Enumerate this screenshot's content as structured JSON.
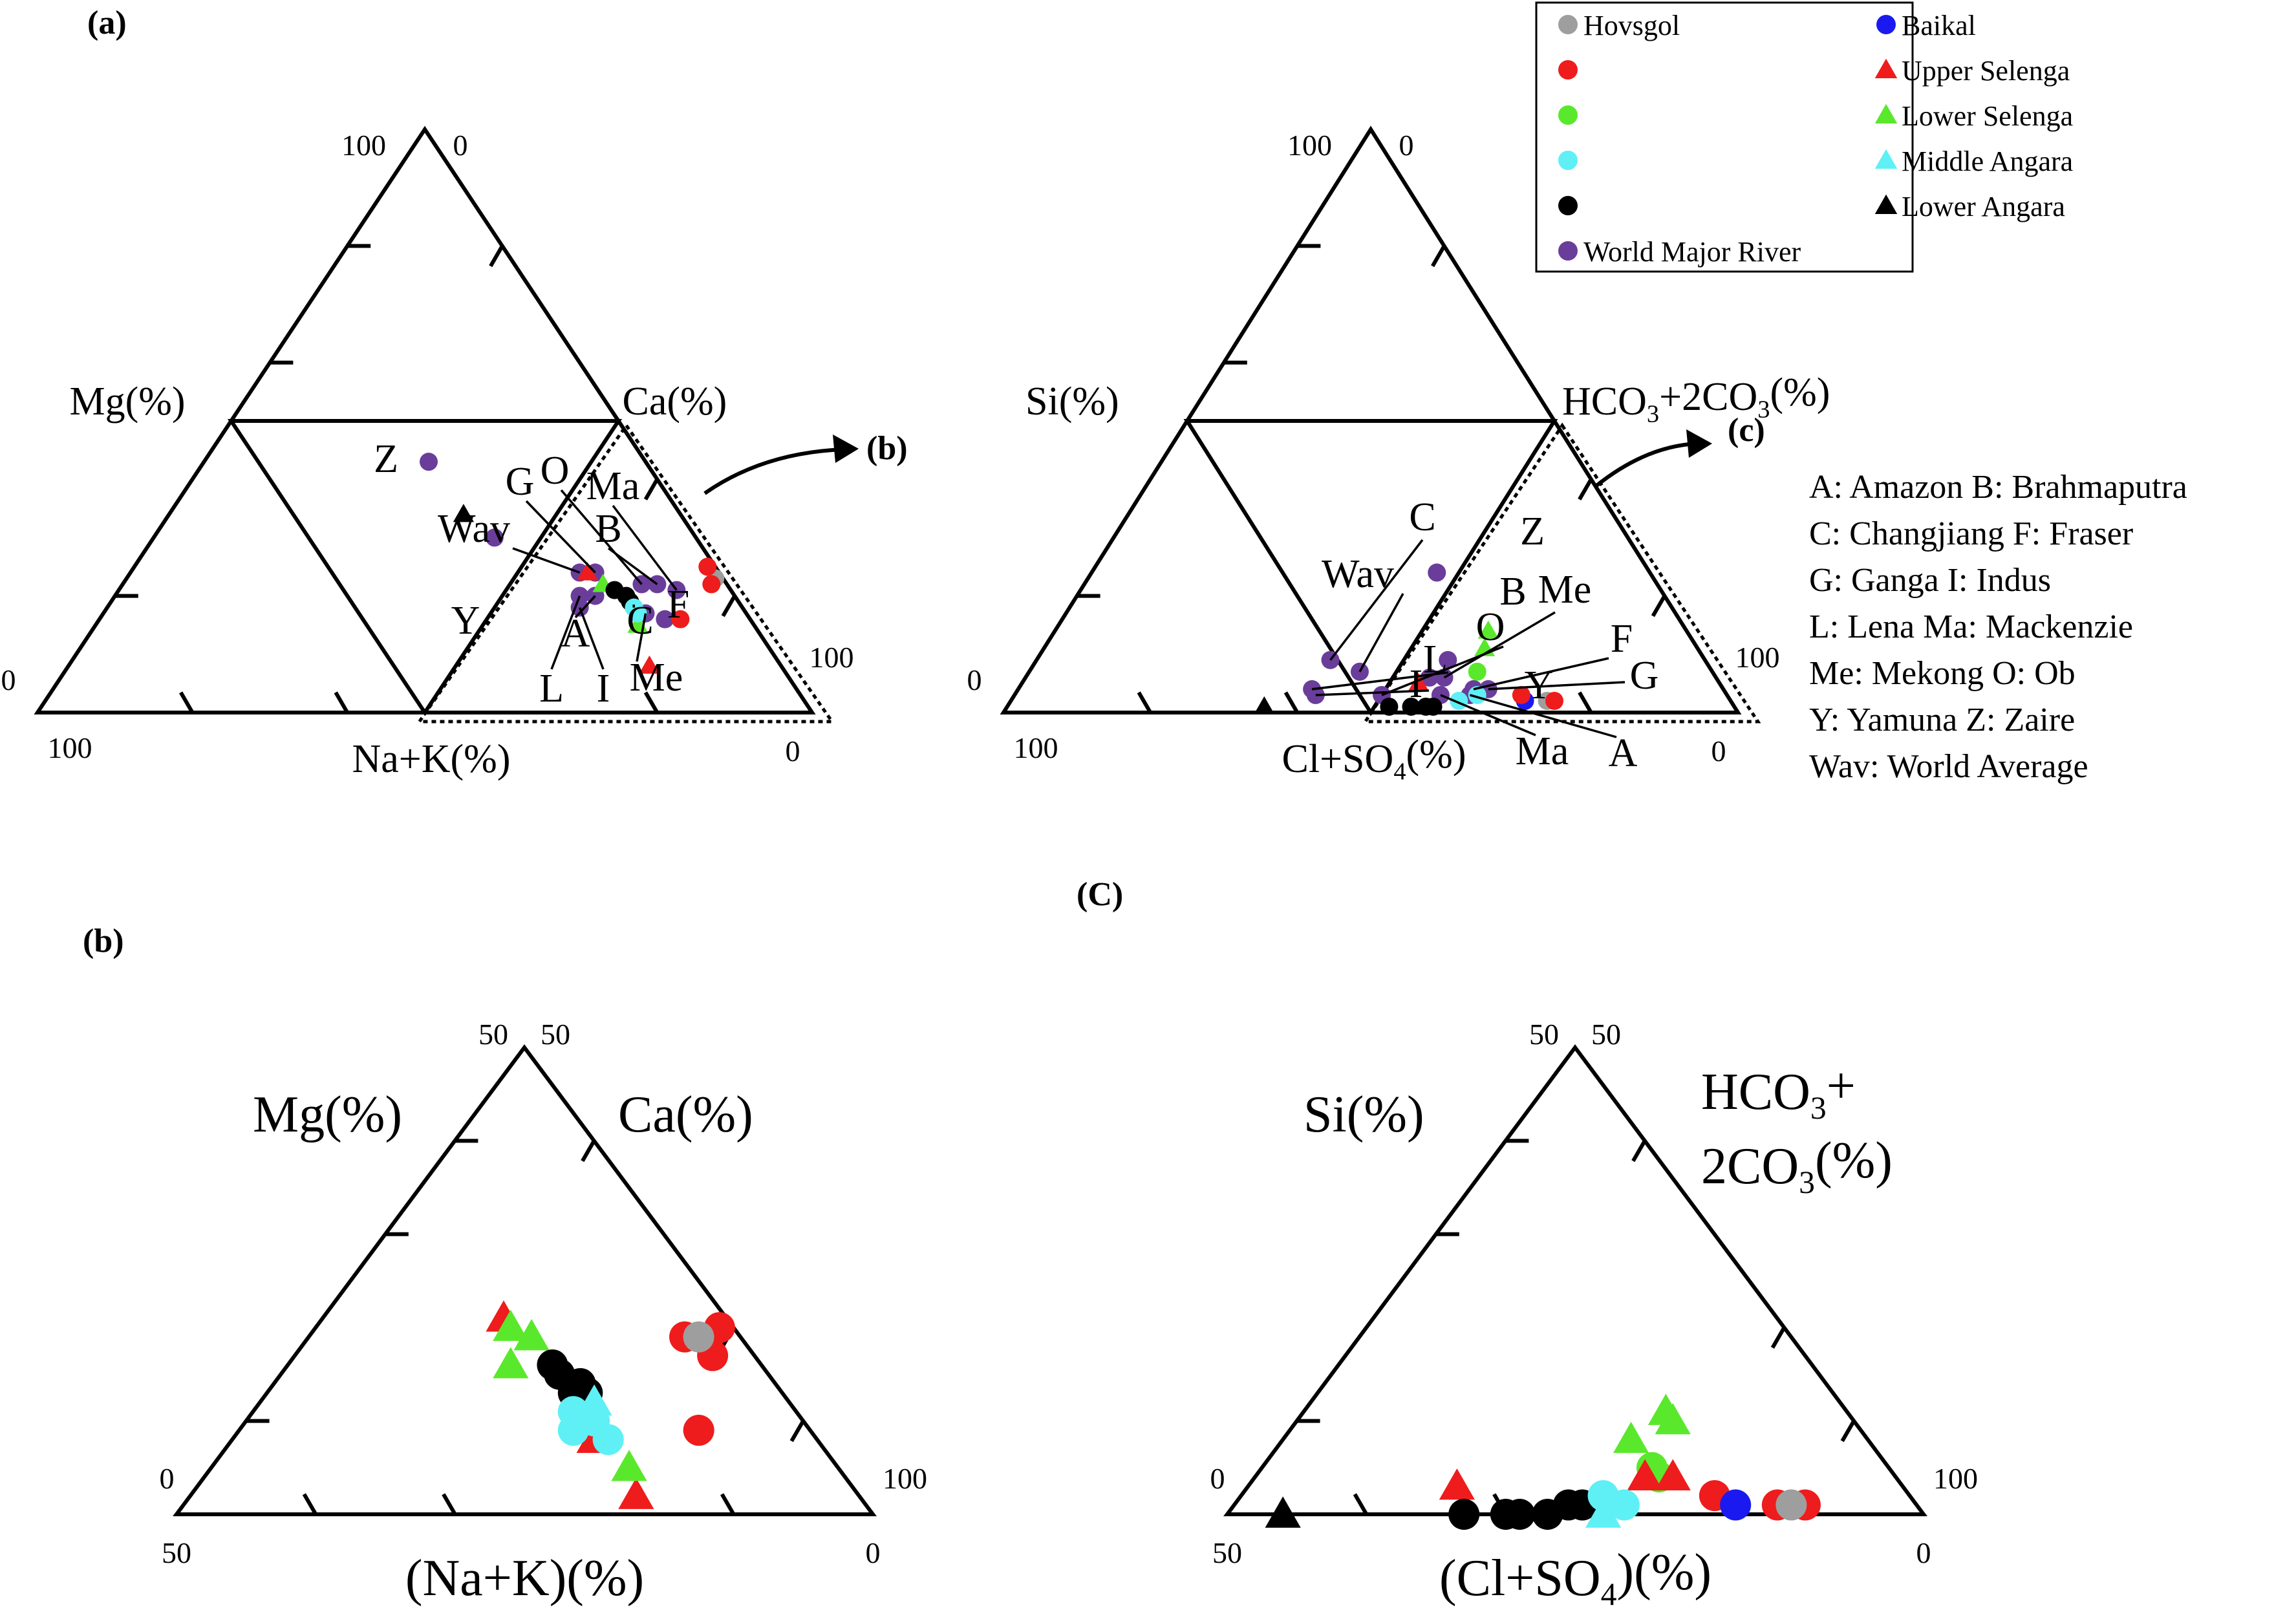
{
  "panel_labels": {
    "a": "(a)",
    "b": "(b)",
    "c": "(C)",
    "arrow_b": "(b)",
    "arrow_c": "(c)"
  },
  "legend": {
    "entries": [
      {
        "label": "Hovsgol",
        "marker": "circle",
        "color": "#9e9e9e"
      },
      {
        "label": "Baikal",
        "marker": "circle",
        "color": "#1a1af0"
      },
      {
        "label": "",
        "marker": "circle",
        "color": "#ee1c1c"
      },
      {
        "label": "Upper Selenga",
        "marker": "triangle",
        "color": "#ee1c1c"
      },
      {
        "label": "",
        "marker": "circle",
        "color": "#5ae82c"
      },
      {
        "label": "Lower Selenga",
        "marker": "triangle",
        "color": "#5ae82c"
      },
      {
        "label": "",
        "marker": "circle",
        "color": "#5ef0f5"
      },
      {
        "label": "Middle Angara",
        "marker": "triangle",
        "color": "#5ef0f5"
      },
      {
        "label": "",
        "marker": "circle",
        "color": "#000000"
      },
      {
        "label": "Lower Angara",
        "marker": "triangle",
        "color": "#000000"
      },
      {
        "label": "World Major River",
        "marker": "circle",
        "color": "#6a3d9a"
      }
    ]
  },
  "abbreviations": [
    "A: Amazon  B: Brahmaputra",
    "C: Changjiang  F: Fraser",
    "G: Ganga  I: Indus",
    "L: Lena  Ma: Mackenzie",
    "Me: Mekong  O: Ob",
    "Y: Yamuna  Z: Zaire",
    "Wav:  World Average"
  ],
  "colors": {
    "Hovsgol": "#9e9e9e",
    "Baikal": "#1a1af0",
    "Red": "#ee1c1c",
    "Green": "#5ae82c",
    "Cyan": "#5ef0f5",
    "Black": "#000000",
    "World Major River": "#6a3d9a"
  },
  "chart_data": [
    {
      "type": "ternary",
      "id": "cation-full",
      "axes": {
        "left": "Mg(%)",
        "right": "Ca(%)",
        "bottom": "Na+K(%)"
      },
      "corner_ticks": {
        "top_left": "100",
        "top_right": "0",
        "left": "0",
        "right": "100",
        "bottom_left": "100",
        "bottom_right": "0"
      },
      "points": [
        {
          "series": "World Major River",
          "marker": "circle",
          "label": "Z",
          "ca": 29,
          "mg": 43
        },
        {
          "series": "World Major River",
          "marker": "circle",
          "label": "Y",
          "ca": 44,
          "mg": 30
        },
        {
          "series": "World Major River",
          "marker": "circle",
          "label": "Wav",
          "ca": 58,
          "mg": 24
        },
        {
          "series": "World Major River",
          "marker": "circle",
          "label": "G",
          "ca": 60,
          "mg": 24
        },
        {
          "series": "World Major River",
          "marker": "circle",
          "label": "L",
          "ca": 60,
          "mg": 20
        },
        {
          "series": "World Major River",
          "marker": "circle",
          "label": "A",
          "ca": 62,
          "mg": 20
        },
        {
          "series": "World Major River",
          "marker": "circle",
          "label": "I",
          "ca": 61,
          "mg": 18
        },
        {
          "series": "World Major River",
          "marker": "circle",
          "label": "O",
          "ca": 67,
          "mg": 22
        },
        {
          "series": "World Major River",
          "marker": "circle",
          "label": "B",
          "ca": 69,
          "mg": 22
        },
        {
          "series": "World Major River",
          "marker": "circle",
          "label": "C",
          "ca": 68,
          "mg": 18
        },
        {
          "series": "World Major River",
          "marker": "circle",
          "label": "Me",
          "ca": 70,
          "mg": 17
        },
        {
          "series": "World Major River",
          "marker": "circle",
          "label": "Ma",
          "ca": 72,
          "mg": 21
        },
        {
          "series": "World Major River",
          "marker": "circle",
          "label": "F",
          "ca": 73,
          "mg": 16
        },
        {
          "series": "Hovsgol",
          "marker": "circle",
          "ca": 76,
          "mg": 23
        },
        {
          "series": "Red",
          "marker": "circle",
          "ca": 74,
          "mg": 25
        },
        {
          "series": "Red",
          "marker": "circle",
          "ca": 76,
          "mg": 22
        },
        {
          "series": "Red",
          "marker": "circle",
          "ca": 75,
          "mg": 16
        },
        {
          "series": "Upper Selenga",
          "marker": "triangle",
          "ca": 75,
          "mg": 8
        },
        {
          "series": "Upper Selenga",
          "marker": "triangle",
          "ca": 59,
          "mg": 24
        },
        {
          "series": "Lower Selenga",
          "marker": "triangle",
          "ca": 62,
          "mg": 22
        },
        {
          "series": "Lower Selenga",
          "marker": "triangle",
          "ca": 70,
          "mg": 15
        },
        {
          "series": "Black",
          "marker": "circle",
          "ca": 64,
          "mg": 21
        },
        {
          "series": "Black",
          "marker": "circle",
          "ca": 66,
          "mg": 20
        },
        {
          "series": "Black",
          "marker": "circle",
          "ca": 67,
          "mg": 19
        },
        {
          "series": "Cyan",
          "marker": "circle",
          "ca": 68,
          "mg": 18
        },
        {
          "series": "Cyan",
          "marker": "circle",
          "ca": 69,
          "mg": 17
        },
        {
          "series": "Lower Angara",
          "marker": "triangle",
          "ca": 38,
          "mg": 34
        }
      ]
    },
    {
      "type": "ternary",
      "id": "anion-full",
      "axes": {
        "left": "Si(%)",
        "right": "HCO3+2CO3(%)",
        "right_parts": [
          "HCO",
          "3",
          "+2CO",
          "3",
          "(%)"
        ],
        "bottom": "Cl+SO4(%)",
        "bottom_parts": [
          "Cl+SO",
          "4",
          "(%)"
        ]
      },
      "corner_ticks": {
        "top_left": "100",
        "top_right": "0",
        "left": "0",
        "right": "100",
        "bottom_left": "100",
        "bottom_right": "0"
      },
      "points": [
        {
          "series": "World Major River",
          "marker": "circle",
          "label": "Z",
          "hco3": 47,
          "si": 24
        },
        {
          "series": "World Major River",
          "marker": "circle",
          "label": "C",
          "hco3": 40,
          "si": 9
        },
        {
          "series": "World Major River",
          "marker": "circle",
          "label": "Wav",
          "hco3": 45,
          "si": 7
        },
        {
          "series": "World Major River",
          "marker": "circle",
          "label": "L",
          "hco3": 40,
          "si": 4
        },
        {
          "series": "World Major River",
          "marker": "circle",
          "label": "I",
          "hco3": 41,
          "si": 3
        },
        {
          "series": "World Major River",
          "marker": "circle",
          "label": "O",
          "hco3": 50,
          "si": 3
        },
        {
          "series": "World Major River",
          "marker": "circle",
          "label": "Y",
          "hco3": 55,
          "si": 6
        },
        {
          "series": "World Major River",
          "marker": "circle",
          "label": "B",
          "hco3": 56,
          "si": 9
        },
        {
          "series": "World Major River",
          "marker": "circle",
          "label": "Me",
          "hco3": 57,
          "si": 6
        },
        {
          "series": "World Major River",
          "marker": "circle",
          "label": "Ma",
          "hco3": 58,
          "si": 3
        },
        {
          "series": "World Major River",
          "marker": "circle",
          "label": "F",
          "hco3": 62,
          "si": 4
        },
        {
          "series": "World Major River",
          "marker": "circle",
          "label": "A",
          "hco3": 62,
          "si": 3
        },
        {
          "series": "World Major River",
          "marker": "circle",
          "label": "G",
          "hco3": 64,
          "si": 4
        },
        {
          "series": "Upper Selenga",
          "marker": "triangle",
          "hco3": 54,
          "si": 5
        },
        {
          "series": "Lower Selenga",
          "marker": "triangle",
          "hco3": 59,
          "si": 14
        },
        {
          "series": "Lower Selenga",
          "marker": "triangle",
          "hco3": 60,
          "si": 11
        },
        {
          "series": "Green",
          "marker": "circle",
          "hco3": 61,
          "si": 7
        },
        {
          "series": "Black",
          "marker": "circle",
          "hco3": 52,
          "si": 1
        },
        {
          "series": "Black",
          "marker": "circle",
          "hco3": 55,
          "si": 1
        },
        {
          "series": "Black",
          "marker": "circle",
          "hco3": 57,
          "si": 1
        },
        {
          "series": "Black",
          "marker": "circle",
          "hco3": 58,
          "si": 1
        },
        {
          "series": "Cyan",
          "marker": "circle",
          "hco3": 61,
          "si": 2
        },
        {
          "series": "Cyan",
          "marker": "circle",
          "hco3": 63,
          "si": 3
        },
        {
          "series": "Baikal",
          "marker": "circle",
          "hco3": 70,
          "si": 2
        },
        {
          "series": "Hovsgol",
          "marker": "circle",
          "hco3": 73,
          "si": 2
        },
        {
          "series": "Red",
          "marker": "circle",
          "hco3": 69,
          "si": 3
        },
        {
          "series": "Red",
          "marker": "circle",
          "hco3": 74,
          "si": 2
        },
        {
          "series": "Lower Angara",
          "marker": "triangle",
          "hco3": 35,
          "si": 1
        }
      ]
    },
    {
      "type": "ternary",
      "id": "cation-zoom",
      "axes": {
        "left": "Mg(%)",
        "right": "Ca(%)",
        "bottom": "(Na+K)(%)"
      },
      "corner_ticks": {
        "top_left": "50",
        "top_right": "50",
        "left": "0",
        "right": "100",
        "bottom_left": "50",
        "bottom_right": "0"
      },
      "points": [
        {
          "series": "Red",
          "marker": "circle",
          "ca": 77,
          "mg": 19
        },
        {
          "series": "Red",
          "marker": "circle",
          "ca": 79,
          "mg": 20
        },
        {
          "series": "Red",
          "marker": "circle",
          "ca": 80,
          "mg": 17
        },
        {
          "series": "Red",
          "marker": "circle",
          "ca": 83,
          "mg": 9
        },
        {
          "series": "Hovsgol",
          "marker": "circle",
          "ca": 78,
          "mg": 19
        },
        {
          "series": "Upper Selenga",
          "marker": "triangle",
          "ca": 63,
          "mg": 21
        },
        {
          "series": "Upper Selenga",
          "marker": "triangle",
          "ca": 82,
          "mg": 2
        },
        {
          "series": "Upper Selenga",
          "marker": "triangle",
          "ca": 76,
          "mg": 8
        },
        {
          "series": "Lower Selenga",
          "marker": "triangle",
          "ca": 64,
          "mg": 20
        },
        {
          "series": "Lower Selenga",
          "marker": "triangle",
          "ca": 66,
          "mg": 19
        },
        {
          "series": "Lower Selenga",
          "marker": "triangle",
          "ca": 66,
          "mg": 16
        },
        {
          "series": "Lower Selenga",
          "marker": "triangle",
          "ca": 80,
          "mg": 5
        },
        {
          "series": "Black",
          "marker": "circle",
          "ca": 69,
          "mg": 16
        },
        {
          "series": "Black",
          "marker": "circle",
          "ca": 70,
          "mg": 15
        },
        {
          "series": "Black",
          "marker": "circle",
          "ca": 72,
          "mg": 14
        },
        {
          "series": "Black",
          "marker": "circle",
          "ca": 73,
          "mg": 13
        },
        {
          "series": "Black",
          "marker": "circle",
          "ca": 72,
          "mg": 13
        },
        {
          "series": "Cyan",
          "marker": "circle",
          "ca": 73,
          "mg": 11
        },
        {
          "series": "Cyan",
          "marker": "circle",
          "ca": 75,
          "mg": 10
        },
        {
          "series": "Cyan",
          "marker": "circle",
          "ca": 77,
          "mg": 8
        },
        {
          "series": "Cyan",
          "marker": "circle",
          "ca": 74,
          "mg": 9
        },
        {
          "series": "Middle Angara",
          "marker": "triangle",
          "ca": 74,
          "mg": 12
        }
      ]
    },
    {
      "type": "ternary",
      "id": "anion-zoom",
      "axes": {
        "left": "Si(%)",
        "right_line1": "HCO3+",
        "right_line1_parts": [
          "HCO",
          "3",
          "+"
        ],
        "right_line2": "2CO3(%)",
        "right_line2_parts": [
          "2CO",
          "3",
          "(%)"
        ],
        "bottom": "(Cl+SO4)(%)",
        "bottom_parts": [
          "(Cl+SO",
          "4",
          ")(%)"
        ]
      },
      "corner_ticks": {
        "top_left": "50",
        "top_right": "50",
        "left": "0",
        "right": "100",
        "bottom_left": "50",
        "bottom_right": "0"
      },
      "points": [
        {
          "series": "Lower Selenga",
          "marker": "triangle",
          "hco3": 76,
          "si": 11
        },
        {
          "series": "Lower Selenga",
          "marker": "triangle",
          "hco3": 77,
          "si": 10
        },
        {
          "series": "Lower Selenga",
          "marker": "triangle",
          "hco3": 75,
          "si": 8
        },
        {
          "series": "Green",
          "marker": "circle",
          "hco3": 78,
          "si": 5
        },
        {
          "series": "Green",
          "marker": "circle",
          "hco3": 79,
          "si": 4
        },
        {
          "series": "Upper Selenga",
          "marker": "triangle",
          "hco3": 65,
          "si": 3
        },
        {
          "series": "Upper Selenga",
          "marker": "triangle",
          "hco3": 78,
          "si": 4
        },
        {
          "series": "Upper Selenga",
          "marker": "triangle",
          "hco3": 80,
          "si": 4
        },
        {
          "series": "Black",
          "marker": "circle",
          "hco3": 67,
          "si": 0
        },
        {
          "series": "Black",
          "marker": "circle",
          "hco3": 70,
          "si": 0
        },
        {
          "series": "Black",
          "marker": "circle",
          "hco3": 71,
          "si": 0
        },
        {
          "series": "Black",
          "marker": "circle",
          "hco3": 73,
          "si": 0
        },
        {
          "series": "Black",
          "marker": "circle",
          "hco3": 74,
          "si": 1
        },
        {
          "series": "Black",
          "marker": "circle",
          "hco3": 75,
          "si": 1
        },
        {
          "series": "Cyan",
          "marker": "circle",
          "hco3": 76,
          "si": 2
        },
        {
          "series": "Cyan",
          "marker": "circle",
          "hco3": 78,
          "si": 1
        },
        {
          "series": "Middle Angara",
          "marker": "triangle",
          "hco3": 77,
          "si": 0
        },
        {
          "series": "Red",
          "marker": "circle",
          "hco3": 84,
          "si": 2
        },
        {
          "series": "Red",
          "marker": "circle",
          "hco3": 89,
          "si": 1
        },
        {
          "series": "Red",
          "marker": "circle",
          "hco3": 91,
          "si": 1
        },
        {
          "series": "Hovsgol",
          "marker": "circle",
          "hco3": 90,
          "si": 1
        },
        {
          "series": "Baikal",
          "marker": "circle",
          "hco3": 86,
          "si": 1
        },
        {
          "series": "Lower Angara",
          "marker": "triangle",
          "hco3": 54,
          "si": 0
        }
      ]
    }
  ]
}
